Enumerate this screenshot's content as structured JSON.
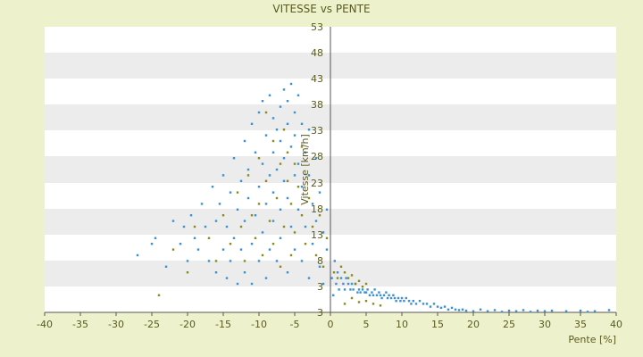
{
  "chart_data": {
    "type": "scatter",
    "title": "VITESSE vs PENTE",
    "xlabel": "Pente [%]",
    "ylabel": "Vitesse [km/h]",
    "xlim": [
      -40,
      40
    ],
    "ylim": [
      3,
      53
    ],
    "x_ticks": [
      "-40",
      "-35",
      "-30",
      "-25",
      "-20",
      "-15",
      "-10",
      "-5",
      "0",
      "5",
      "10",
      "15",
      "20",
      "25",
      "30",
      "35",
      "40"
    ],
    "y_ticks": [
      "53",
      "48",
      "43",
      "38",
      "33",
      "28",
      "23",
      "18",
      "13",
      "8",
      "3",
      "3"
    ],
    "grid": "horizontal bands",
    "legend": "none",
    "colors": {
      "series_blue": "#3a8fd9",
      "series_olive": "#8a8a1a",
      "band": "#ececec",
      "plot_bg": "#ffffff"
    },
    "series": [
      {
        "points": [
          [
            -27,
            13
          ],
          [
            -25,
            15
          ],
          [
            -24.5,
            16
          ],
          [
            -23,
            11
          ],
          [
            -22,
            19
          ],
          [
            -21,
            15
          ],
          [
            -20.5,
            18
          ],
          [
            -20,
            12
          ],
          [
            -19.5,
            20
          ],
          [
            -19,
            16
          ],
          [
            -18.5,
            14
          ],
          [
            -18,
            22
          ],
          [
            -17.5,
            18
          ],
          [
            -17,
            12
          ],
          [
            -16.5,
            25
          ],
          [
            -16,
            10
          ],
          [
            -16,
            19
          ],
          [
            -15.5,
            22
          ],
          [
            -15,
            14
          ],
          [
            -15,
            27
          ],
          [
            -14.5,
            9
          ],
          [
            -14.5,
            18
          ],
          [
            -14,
            24
          ],
          [
            -14,
            12
          ],
          [
            -13.5,
            30
          ],
          [
            -13.5,
            16
          ],
          [
            -13,
            21
          ],
          [
            -13,
            8
          ],
          [
            -12.5,
            26
          ],
          [
            -12.5,
            14
          ],
          [
            -12,
            33
          ],
          [
            -12,
            19
          ],
          [
            -12,
            10
          ],
          [
            -11.5,
            23
          ],
          [
            -11.5,
            28
          ],
          [
            -11,
            15
          ],
          [
            -11,
            36
          ],
          [
            -11,
            8
          ],
          [
            -10.5,
            20
          ],
          [
            -10.5,
            31
          ],
          [
            -10,
            25
          ],
          [
            -10,
            12
          ],
          [
            -10,
            38
          ],
          [
            -9.5,
            17
          ],
          [
            -9.5,
            29
          ],
          [
            -9.5,
            40
          ],
          [
            -9,
            22
          ],
          [
            -9,
            34
          ],
          [
            -9,
            9
          ],
          [
            -8.5,
            27
          ],
          [
            -8.5,
            14
          ],
          [
            -8.5,
            41
          ],
          [
            -8,
            31
          ],
          [
            -8,
            19
          ],
          [
            -8,
            37
          ],
          [
            -8,
            24
          ],
          [
            -7.5,
            35
          ],
          [
            -7.5,
            12
          ],
          [
            -7.5,
            28
          ],
          [
            -7,
            39
          ],
          [
            -7,
            21
          ],
          [
            -7,
            33
          ],
          [
            -7,
            16
          ],
          [
            -6.5,
            42
          ],
          [
            -6.5,
            26
          ],
          [
            -6.5,
            30
          ],
          [
            -6,
            36
          ],
          [
            -6,
            23
          ],
          [
            -6,
            10
          ],
          [
            -6,
            40
          ],
          [
            -5.5,
            32
          ],
          [
            -5.5,
            18
          ],
          [
            -5.5,
            43
          ],
          [
            -5,
            27
          ],
          [
            -5,
            38
          ],
          [
            -5,
            14
          ],
          [
            -5,
            34
          ],
          [
            -4.5,
            29
          ],
          [
            -4.5,
            41
          ],
          [
            -4.5,
            21
          ],
          [
            -4,
            36
          ],
          [
            -4,
            25
          ],
          [
            -4,
            12
          ],
          [
            -3.5,
            31
          ],
          [
            -3.5,
            18
          ],
          [
            -3,
            27
          ],
          [
            -3,
            35
          ],
          [
            -3,
            9
          ],
          [
            -2.5,
            22
          ],
          [
            -2.5,
            15
          ],
          [
            -2,
            30
          ],
          [
            -2,
            19
          ],
          [
            -1.5,
            24
          ],
          [
            -1.5,
            11
          ],
          [
            -1,
            17
          ],
          [
            -1,
            8
          ],
          [
            -0.5,
            14
          ],
          [
            -0.5,
            21
          ],
          [
            0.2,
            9
          ],
          [
            0.4,
            6
          ],
          [
            0.6,
            12
          ],
          [
            0.8,
            8
          ],
          [
            1,
            10
          ],
          [
            1.2,
            7
          ],
          [
            1.5,
            9
          ],
          [
            1.8,
            8
          ],
          [
            2,
            7
          ],
          [
            2.2,
            9
          ],
          [
            2.5,
            8
          ],
          [
            2.8,
            7
          ],
          [
            3,
            8
          ],
          [
            3.2,
            7
          ],
          [
            3.5,
            8
          ],
          [
            3.8,
            6.5
          ],
          [
            4,
            7
          ],
          [
            4.2,
            6.5
          ],
          [
            4.5,
            7
          ],
          [
            4.8,
            6.5
          ],
          [
            5,
            6.5
          ],
          [
            5.2,
            7
          ],
          [
            5.5,
            6
          ],
          [
            5.8,
            6.5
          ],
          [
            6,
            6
          ],
          [
            6.2,
            7
          ],
          [
            6.5,
            6
          ],
          [
            6.8,
            6.5
          ],
          [
            7,
            6
          ],
          [
            7.2,
            5.5
          ],
          [
            7.5,
            6
          ],
          [
            7.8,
            6.5
          ],
          [
            8,
            5.5
          ],
          [
            8.2,
            6
          ],
          [
            8.5,
            5.5
          ],
          [
            8.8,
            6
          ],
          [
            9,
            5.5
          ],
          [
            9.2,
            5
          ],
          [
            9.5,
            5.5
          ],
          [
            9.8,
            5
          ],
          [
            10,
            5.5
          ],
          [
            10.3,
            5
          ],
          [
            10.6,
            5.5
          ],
          [
            11,
            5
          ],
          [
            11.3,
            4.5
          ],
          [
            11.6,
            5
          ],
          [
            12,
            4.5
          ],
          [
            12.5,
            5
          ],
          [
            13,
            4.5
          ],
          [
            13.5,
            4.5
          ],
          [
            14,
            4
          ],
          [
            14.5,
            4.5
          ],
          [
            15,
            4
          ],
          [
            15.5,
            3.8
          ],
          [
            16,
            4
          ],
          [
            16.5,
            3.5
          ],
          [
            17,
            3.8
          ],
          [
            17.5,
            3.5
          ],
          [
            18,
            3.4
          ],
          [
            18.5,
            3.5
          ],
          [
            19,
            3.3
          ],
          [
            20,
            3.2
          ],
          [
            21,
            3.5
          ],
          [
            22,
            3.2
          ],
          [
            23,
            3.4
          ],
          [
            24,
            3.1
          ],
          [
            25,
            3.3
          ],
          [
            26,
            3.2
          ],
          [
            27,
            3.4
          ],
          [
            28,
            3.1
          ],
          [
            29,
            3.3
          ],
          [
            30,
            3.2
          ],
          [
            31,
            3.3
          ],
          [
            33,
            3.2
          ],
          [
            35,
            3.3
          ],
          [
            36,
            3.1
          ],
          [
            37,
            3.2
          ],
          [
            39,
            3.4
          ]
        ]
      },
      {
        "points": [
          [
            -24,
            6
          ],
          [
            -22,
            14
          ],
          [
            -20,
            10
          ],
          [
            -19,
            18
          ],
          [
            -17,
            16
          ],
          [
            -16,
            12
          ],
          [
            -15,
            20
          ],
          [
            -14,
            15
          ],
          [
            -13,
            24
          ],
          [
            -12.5,
            18
          ],
          [
            -12,
            12
          ],
          [
            -11.5,
            27
          ],
          [
            -11,
            20
          ],
          [
            -10.5,
            16
          ],
          [
            -10,
            30
          ],
          [
            -10,
            22
          ],
          [
            -9.5,
            13
          ],
          [
            -9,
            26
          ],
          [
            -9,
            38
          ],
          [
            -8.5,
            19
          ],
          [
            -8,
            33
          ],
          [
            -8,
            15
          ],
          [
            -7.5,
            23
          ],
          [
            -7,
            29
          ],
          [
            -7,
            11
          ],
          [
            -6.5,
            35
          ],
          [
            -6.5,
            18
          ],
          [
            -6,
            26
          ],
          [
            -6,
            31
          ],
          [
            -5.5,
            22
          ],
          [
            -5.5,
            13
          ],
          [
            -5,
            29
          ],
          [
            -5,
            17
          ],
          [
            -4.5,
            25
          ],
          [
            -4,
            20
          ],
          [
            -4,
            32
          ],
          [
            -3.5,
            15
          ],
          [
            -3,
            23
          ],
          [
            -2.5,
            18
          ],
          [
            -2,
            13
          ],
          [
            -1.5,
            20
          ],
          [
            -1,
            11
          ],
          [
            -0.5,
            16
          ],
          [
            0.5,
            10
          ],
          [
            1,
            9
          ],
          [
            1.5,
            11
          ],
          [
            2,
            10
          ],
          [
            2.5,
            9
          ],
          [
            3,
            9.5
          ],
          [
            3.5,
            8
          ],
          [
            4,
            8.5
          ],
          [
            4.5,
            7.5
          ],
          [
            5,
            8
          ],
          [
            2,
            4.5
          ],
          [
            3,
            5.5
          ],
          [
            4,
            4.8
          ],
          [
            5,
            5
          ],
          [
            6,
            4.5
          ],
          [
            7,
            4.2
          ]
        ]
      }
    ]
  }
}
